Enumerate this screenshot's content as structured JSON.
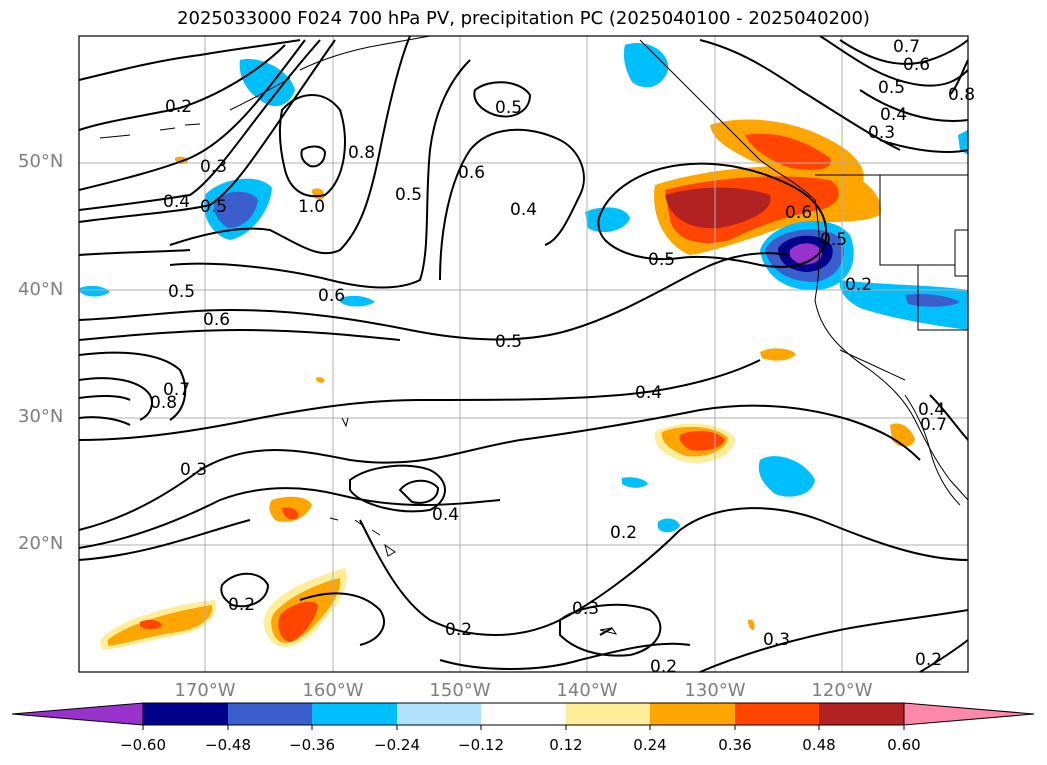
{
  "title": "2025033000 F024 700 hPa PV, precipitation PC (2025040100 - 2025040200)",
  "map": {
    "lat_labels": [
      "50°N",
      "40°N",
      "30°N",
      "20°N"
    ],
    "lon_labels": [
      "170°W",
      "160°W",
      "150°W",
      "140°W",
      "130°W",
      "120°W"
    ]
  },
  "contour_labels": [
    "0.7",
    "0.6",
    "0.5",
    "0.4",
    "0.3",
    "0.2",
    "0.3",
    "0.4",
    "0.5",
    "1.0",
    "0.8",
    "0.5",
    "0.6",
    "0.5",
    "0.4",
    "0.5",
    "0.6",
    "0.6",
    "0.5",
    "0.5",
    "0.2",
    "0.8",
    "0.7",
    "0.6",
    "0.5",
    "0.4",
    "0.3",
    "0.4",
    "0.2",
    "0.2",
    "0.3",
    "0.2",
    "0.2",
    "0.3",
    "0.2",
    "0.4",
    "0.8",
    "0.7"
  ],
  "colorbar": {
    "ticks": [
      "−0.60",
      "−0.48",
      "−0.36",
      "−0.24",
      "−0.12",
      "0.12",
      "0.24",
      "0.36",
      "0.48",
      "0.60"
    ],
    "colors": [
      "#9932cc",
      "#00008b",
      "#3a5fcd",
      "#00bfff",
      "#b0e2ff",
      "#ffffff",
      "#ffee99",
      "#ffa500",
      "#ff4500",
      "#b22222",
      "#ff88aa"
    ]
  }
}
